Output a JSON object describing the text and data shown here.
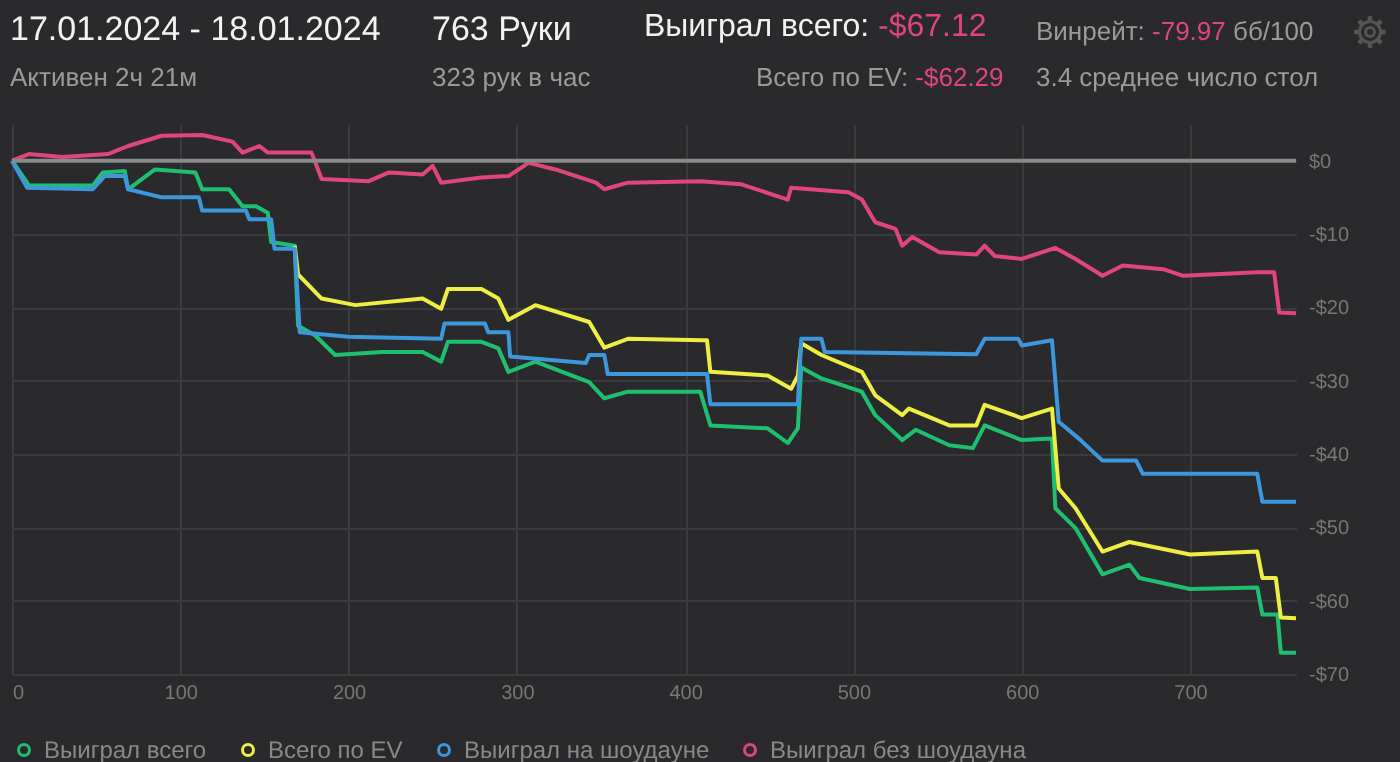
{
  "chart_data": {
    "type": "line",
    "title": "17.01.2024 - 18.01.2024",
    "subtitle": "Активен 2ч 21м",
    "annotations": [
      "763 Руки",
      "323 рук в час",
      "Выиграл всего:",
      "-$67.12",
      "Всего по EV:",
      "-$62.29",
      "Винрейт:",
      "-79.97",
      "бб/100",
      "3.4 среднее число стол"
    ],
    "xlim": [
      0,
      763
    ],
    "xticks": [
      0,
      100,
      200,
      300,
      400,
      500,
      600,
      700
    ],
    "ylim": [
      -70,
      5
    ],
    "yticks": [
      {
        "value": 0,
        "label": "$0"
      },
      {
        "value": -10,
        "label": "-$10"
      },
      {
        "value": -20,
        "label": "-$20"
      },
      {
        "value": -30,
        "label": "-$30"
      },
      {
        "value": -40,
        "label": "-$40"
      },
      {
        "value": -50,
        "label": "-$50"
      },
      {
        "value": -60,
        "label": "-$60"
      },
      {
        "value": -70,
        "label": "-$70"
      }
    ],
    "grid": true,
    "legend": "bottom",
    "marker": "none",
    "line_style": "solid",
    "ref_lines": [
      {
        "axis": "y",
        "value": 0,
        "color": "#8a8a8a"
      }
    ],
    "series": [
      {
        "name": "Выиграл всего",
        "color": "#1fbf72",
        "x": [
          0,
          9,
          10,
          48,
          54,
          67,
          69,
          85,
          109,
          113,
          129,
          137,
          145,
          152,
          154,
          168,
          170,
          180,
          192,
          220,
          244,
          255,
          259,
          279,
          289,
          295,
          311,
          343,
          352,
          366,
          409,
          415,
          449,
          461,
          467,
          469,
          481,
          505,
          513,
          529,
          537,
          557,
          571,
          578,
          600,
          618,
          620,
          632,
          648,
          664,
          670,
          700,
          740,
          743,
          752,
          754,
          763
        ],
        "values": [
          0,
          -3,
          -3.4,
          -3.4,
          -1.6,
          -1.4,
          -3.9,
          -1.2,
          -1.6,
          -3.9,
          -3.9,
          -6.2,
          -6.2,
          -7.1,
          -11.1,
          -11.6,
          -22.5,
          -23.8,
          -26.5,
          -26.1,
          -26.1,
          -27.4,
          -24.7,
          -24.7,
          -25.6,
          -28.8,
          -27.4,
          -30.2,
          -32.4,
          -31.5,
          -31.5,
          -36.1,
          -36.5,
          -38.5,
          -36.5,
          -28.2,
          -29.7,
          -31.5,
          -34.7,
          -38.1,
          -36.7,
          -38.8,
          -39.2,
          -36.1,
          -38.1,
          -37.9,
          -47.4,
          -50.1,
          -56.4,
          -55.1,
          -56.9,
          -58.4,
          -58.2,
          -61.9,
          -61.9,
          -67.1,
          -67.1
        ]
      },
      {
        "name": "Всего по EV",
        "color": "#eeee44",
        "x": [
          168,
          170,
          184,
          204,
          244,
          255,
          259,
          279,
          289,
          295,
          311,
          343,
          352,
          366,
          410,
          413,
          415,
          449,
          463,
          467,
          469,
          481,
          505,
          513,
          529,
          533,
          557,
          573,
          578,
          600,
          618,
          622,
          632,
          648,
          664,
          700,
          740,
          743,
          751,
          754,
          763
        ],
        "values": [
          -11.6,
          -15.5,
          -18.8,
          -19.7,
          -18.8,
          -20.2,
          -17.5,
          -17.5,
          -18.8,
          -21.7,
          -19.7,
          -22,
          -25.5,
          -24.3,
          -24.5,
          -24.5,
          -28.8,
          -29.3,
          -31.1,
          -29.3,
          -24.9,
          -26.5,
          -28.8,
          -32,
          -34.7,
          -33.8,
          -36.1,
          -36.1,
          -33.3,
          -35.1,
          -33.8,
          -44.7,
          -47.4,
          -53.3,
          -52,
          -53.7,
          -53.3,
          -56.9,
          -56.9,
          -62.3,
          -62.4
        ]
      },
      {
        "name": "Выиграл на шоудауне",
        "color": "#3d97dc",
        "x": [
          0,
          9,
          48,
          55,
          67,
          69,
          89,
          111,
          113,
          139,
          141,
          154,
          156,
          168,
          171,
          200,
          255,
          257,
          281,
          283,
          295,
          296,
          341,
          343,
          352,
          354,
          410,
          413,
          415,
          467,
          469,
          481,
          483,
          573,
          578,
          598,
          600,
          618,
          622,
          634,
          648,
          668,
          672,
          740,
          743,
          763
        ],
        "values": [
          0,
          -3.7,
          -3.9,
          -2.1,
          -2.1,
          -3.9,
          -5,
          -5,
          -6.8,
          -6.8,
          -8,
          -8,
          -12,
          -12,
          -23.4,
          -24,
          -24.3,
          -22.2,
          -22.2,
          -23.4,
          -23.4,
          -26.7,
          -27.6,
          -26.5,
          -26.5,
          -29.1,
          -29.1,
          -29.1,
          -33.2,
          -33.2,
          -24.3,
          -24.3,
          -26.1,
          -26.4,
          -24.3,
          -24.3,
          -25.2,
          -24.5,
          -35.6,
          -37.9,
          -40.9,
          -40.9,
          -42.7,
          -42.7,
          -46.5,
          -46.5
        ]
      },
      {
        "name": "Выиграл без шоудауна",
        "color": "#e0457c",
        "x": [
          0,
          10,
          30,
          57,
          69,
          89,
          113,
          131,
          137,
          147,
          152,
          178,
          184,
          212,
          224,
          244,
          250,
          255,
          279,
          295,
          307,
          323,
          347,
          352,
          366,
          409,
          433,
          461,
          463,
          497,
          505,
          513,
          525,
          529,
          535,
          551,
          573,
          578,
          584,
          600,
          620,
          632,
          648,
          660,
          684,
          696,
          740,
          750,
          753,
          763
        ],
        "values": [
          0,
          0.9,
          0.5,
          0.9,
          2,
          3.4,
          3.5,
          2.6,
          1.1,
          2,
          1.1,
          1.1,
          -2.5,
          -2.8,
          -1.6,
          -1.9,
          -0.7,
          -3,
          -2.3,
          -2.1,
          -0.3,
          -1.2,
          -3,
          -3.9,
          -3,
          -2.8,
          -3.2,
          -5.3,
          -3.7,
          -4.3,
          -5.3,
          -8.4,
          -9.3,
          -11.6,
          -10.4,
          -12.5,
          -12.8,
          -11.6,
          -13,
          -13.4,
          -11.9,
          -13.4,
          -15.7,
          -14.3,
          -14.8,
          -15.7,
          -15.2,
          -15.2,
          -20.7,
          -20.8
        ]
      }
    ]
  }
}
